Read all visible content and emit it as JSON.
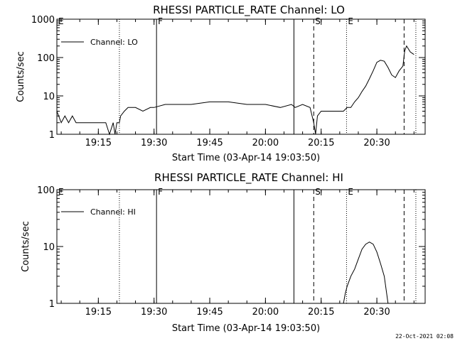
{
  "footer": {
    "timestamp": "22-Oct-2021 02:08"
  },
  "chart_data": [
    {
      "type": "line",
      "title": "RHESSI PARTICLE_RATE Channel: LO",
      "xlabel": "Start Time (03-Apr-14 19:03:50)",
      "ylabel": "Counts/sec",
      "yscale": "log",
      "ylim": [
        1,
        1000
      ],
      "yticks": [
        "1",
        "10",
        "100",
        "1000"
      ],
      "xlim": [
        "19:03:50",
        "20:43:00"
      ],
      "xticks": [
        "19:15",
        "19:30",
        "19:45",
        "20:00",
        "20:15",
        "20:30"
      ],
      "legend": {
        "position": "top-left",
        "entries": [
          "Channel: LO"
        ]
      },
      "flags": [
        {
          "label": "E",
          "time": "19:03:50",
          "style": "dotted"
        },
        {
          "label": "",
          "time": "19:20:40",
          "style": "dotted"
        },
        {
          "label": "F",
          "time": "19:30:40",
          "style": "solid"
        },
        {
          "label": "",
          "time": "20:07:40",
          "style": "solid"
        },
        {
          "label": "S",
          "time": "20:13:00",
          "style": "dashed"
        },
        {
          "label": "E",
          "time": "20:21:50",
          "style": "dotted"
        },
        {
          "label": "",
          "time": "20:37:20",
          "style": "dashed"
        },
        {
          "label": "",
          "time": "20:40:30",
          "style": "dotted"
        }
      ],
      "series": [
        {
          "name": "Channel: LO",
          "x": [
            "19:03:50",
            "19:05:00",
            "19:06:00",
            "19:07:00",
            "19:08:00",
            "19:09:00",
            "19:10:00",
            "19:11:00",
            "19:13:00",
            "19:15:00",
            "19:17:00",
            "19:18:00",
            "19:19:00",
            "19:19:30",
            "19:20:00",
            "19:20:40",
            "19:21:00",
            "19:22:00",
            "19:23:00",
            "19:25:00",
            "19:27:00",
            "19:29:00",
            "19:30:00",
            "19:33:00",
            "19:36:00",
            "19:40:00",
            "19:45:00",
            "19:50:00",
            "19:55:00",
            "20:00:00",
            "20:04:00",
            "20:07:00",
            "20:08:00",
            "20:10:00",
            "20:12:00",
            "20:13:00",
            "20:13:30",
            "20:14:00",
            "20:15:00",
            "20:17:00",
            "20:19:00",
            "20:21:00",
            "20:22:00",
            "20:23:00",
            "20:24:00",
            "20:25:00",
            "20:26:00",
            "20:27:00",
            "20:28:00",
            "20:29:00",
            "20:30:00",
            "20:31:00",
            "20:32:00",
            "20:33:00",
            "20:34:00",
            "20:35:00",
            "20:36:00",
            "20:37:00",
            "20:37:30",
            "20:38:00",
            "20:39:00",
            "20:40:00"
          ],
          "values": [
            4,
            2,
            3,
            2,
            3,
            2,
            2,
            2,
            2,
            2,
            2,
            1,
            2,
            1,
            2,
            2,
            3,
            4,
            5,
            5,
            4,
            5,
            5,
            6,
            6,
            6,
            7,
            7,
            6,
            6,
            5,
            6,
            5,
            6,
            5,
            2,
            1,
            3,
            4,
            4,
            4,
            4,
            5,
            5,
            7,
            9,
            13,
            18,
            28,
            45,
            75,
            85,
            80,
            55,
            35,
            30,
            45,
            60,
            150,
            200,
            140,
            120
          ]
        }
      ]
    },
    {
      "type": "line",
      "title": "RHESSI PARTICLE_RATE Channel: HI",
      "xlabel": "Start Time (03-Apr-14 19:03:50)",
      "ylabel": "Counts/sec",
      "yscale": "log",
      "ylim": [
        1,
        100
      ],
      "yticks": [
        "1",
        "10",
        "100"
      ],
      "xlim": [
        "19:03:50",
        "20:43:00"
      ],
      "xticks": [
        "19:15",
        "19:30",
        "19:45",
        "20:00",
        "20:15",
        "20:30"
      ],
      "legend": {
        "position": "top-left",
        "entries": [
          "Channel: HI"
        ]
      },
      "flags": [
        {
          "label": "E",
          "time": "19:03:50",
          "style": "dotted"
        },
        {
          "label": "",
          "time": "19:20:40",
          "style": "dotted"
        },
        {
          "label": "F",
          "time": "19:30:40",
          "style": "solid"
        },
        {
          "label": "",
          "time": "20:07:40",
          "style": "solid"
        },
        {
          "label": "S",
          "time": "20:13:00",
          "style": "dashed"
        },
        {
          "label": "E",
          "time": "20:21:50",
          "style": "dotted"
        },
        {
          "label": "",
          "time": "20:37:20",
          "style": "dashed"
        },
        {
          "label": "",
          "time": "20:40:30",
          "style": "dotted"
        }
      ],
      "series": [
        {
          "name": "Channel: HI",
          "x": [
            "20:21:00",
            "20:21:30",
            "20:22:00",
            "20:23:00",
            "20:24:00",
            "20:25:00",
            "20:26:00",
            "20:27:00",
            "20:28:00",
            "20:29:00",
            "20:30:00",
            "20:31:00",
            "20:32:00",
            "20:33:00"
          ],
          "values": [
            1,
            1.5,
            2,
            3,
            4,
            6,
            9,
            11,
            12,
            11,
            8,
            5,
            3,
            1
          ]
        }
      ]
    }
  ]
}
